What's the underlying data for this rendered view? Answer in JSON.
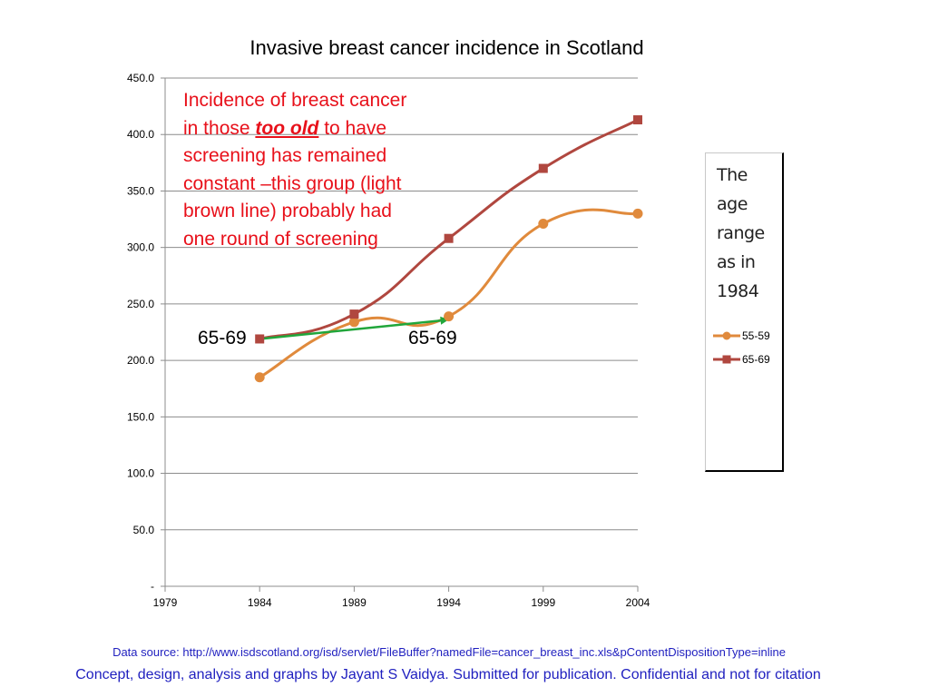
{
  "chart_data": {
    "type": "line",
    "title": "Invasive breast cancer incidence in Scotland",
    "x": [
      1984,
      1989,
      1994,
      1999,
      2004
    ],
    "x_ticks": [
      "1979",
      "1984",
      "1989",
      "1994",
      "1999",
      "2004"
    ],
    "xlim": [
      1979,
      2004
    ],
    "ylim": [
      0,
      450
    ],
    "y_ticks": [
      "-",
      "50.0",
      "100.0",
      "150.0",
      "200.0",
      "250.0",
      "300.0",
      "350.0",
      "400.0",
      "450.0"
    ],
    "grid": "horizontal",
    "smooth": true,
    "legend_placement": "right",
    "series": [
      {
        "name": "55-59",
        "values": [
          185,
          234,
          239,
          321,
          330
        ],
        "color": "#e08a3c",
        "marker": "circle"
      },
      {
        "name": "65-69",
        "values": [
          219,
          241,
          308,
          370,
          413
        ],
        "color": "#b0473f",
        "marker": "square"
      }
    ],
    "arrow": {
      "from": [
        1984,
        219
      ],
      "to": [
        1994,
        236
      ],
      "color": "#21a63b"
    }
  },
  "annotation": {
    "line1": "Incidence of breast cancer",
    "line2_pre": "in those ",
    "line2_emph": "too old",
    "line2_post": " to have",
    "line3": "screening has remained",
    "line4": "constant –this group (light",
    "line5": "brown line) probably had",
    "line6": "one round of screening"
  },
  "age_labels": {
    "left": "65-69",
    "right": "65-69"
  },
  "legend": {
    "note_lines": [
      "The age",
      "range",
      "as in",
      "1984"
    ]
  },
  "footer": {
    "source": "Data source: http://www.isdscotland.org/isd/servlet/FileBuffer?namedFile=cancer_breast_inc.xls&pContentDispositionType=inline",
    "credit": "Concept, design, analysis and graphs by Jayant S Vaidya.  Submitted for publication. Confidential and not for citation"
  }
}
